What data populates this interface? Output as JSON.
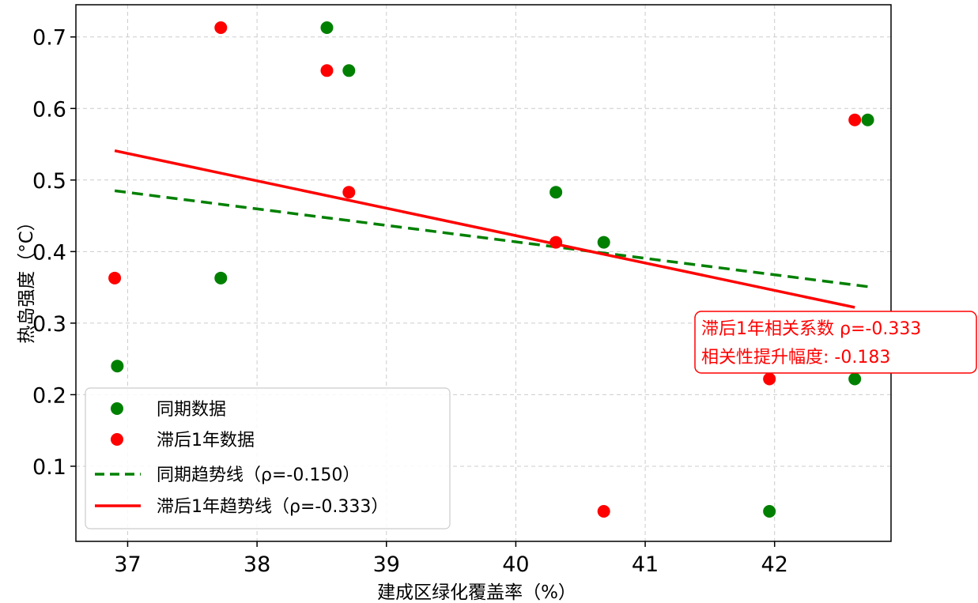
{
  "chart_data": {
    "type": "scatter",
    "xlabel": "建成区绿化覆盖率（%）",
    "ylabel": "热岛强度（°C）",
    "xlim": [
      36.6,
      42.9
    ],
    "ylim": [
      -0.005,
      0.745
    ],
    "xticks": [
      "37",
      "38",
      "39",
      "40",
      "41",
      "42"
    ],
    "yticks": [
      "0.1",
      "0.2",
      "0.3",
      "0.4",
      "0.5",
      "0.6",
      "0.7"
    ],
    "grid": true,
    "legend_position": "lower-left",
    "series": [
      {
        "name": "同期数据",
        "kind": "scatter",
        "color": "#008000",
        "points": [
          [
            36.92,
            0.24
          ],
          [
            37.72,
            0.363
          ],
          [
            38.54,
            0.713
          ],
          [
            38.71,
            0.653
          ],
          [
            40.31,
            0.483
          ],
          [
            40.68,
            0.413
          ],
          [
            41.96,
            0.037
          ],
          [
            42.62,
            0.222
          ],
          [
            42.72,
            0.584
          ]
        ]
      },
      {
        "name": "滞后1年数据",
        "kind": "scatter",
        "color": "#ff0000",
        "points": [
          [
            36.9,
            0.363
          ],
          [
            37.72,
            0.713
          ],
          [
            38.54,
            0.653
          ],
          [
            38.71,
            0.483
          ],
          [
            40.31,
            0.413
          ],
          [
            40.68,
            0.037
          ],
          [
            41.96,
            0.222
          ],
          [
            42.62,
            0.584
          ]
        ]
      },
      {
        "name": "同期趋势线（ρ=-0.150）",
        "kind": "line",
        "style": "dashed",
        "color": "#008000",
        "points": [
          [
            36.9,
            0.485
          ],
          [
            42.72,
            0.351
          ]
        ]
      },
      {
        "name": "滞后1年趋势线（ρ=-0.333）",
        "kind": "line",
        "style": "solid",
        "color": "#ff0000",
        "points": [
          [
            36.9,
            0.541
          ],
          [
            42.62,
            0.322
          ]
        ]
      }
    ],
    "annotation": {
      "lines": [
        "滞后1年相关系数 ρ=-0.333",
        "相关性提升幅度: -0.183"
      ],
      "color": "#ff0000"
    }
  }
}
